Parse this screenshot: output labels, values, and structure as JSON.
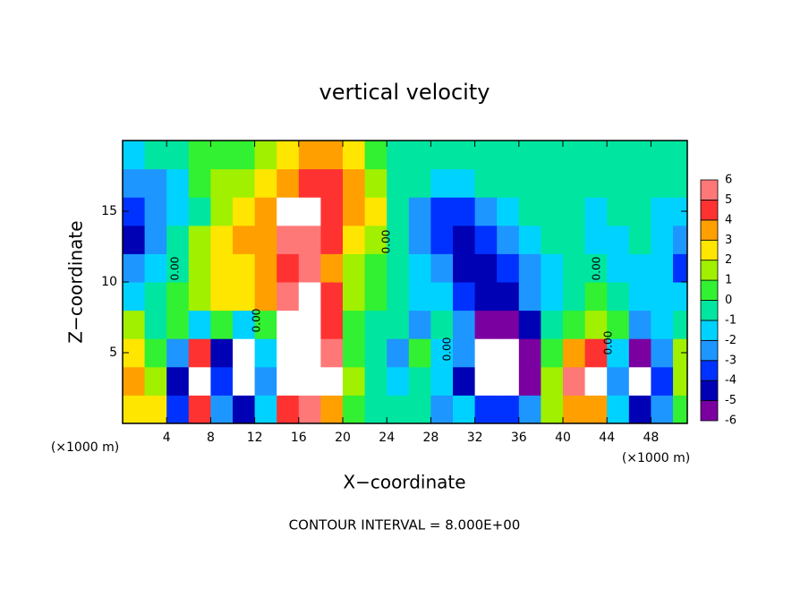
{
  "chart_data": {
    "type": "contour",
    "title": "vertical velocity",
    "x_label": "X−coordinate",
    "y_label": "Z−coordinate",
    "x_unit": "(×1000 m)",
    "y_unit": "(×1000 m)",
    "footer": "CONTOUR INTERVAL = 8.000E+00",
    "contour_label": "0.00",
    "x": [
      1,
      3,
      5,
      7,
      9,
      11,
      13,
      15,
      17,
      19,
      21,
      23,
      25,
      27,
      29,
      31,
      33,
      35,
      37,
      39,
      41,
      43,
      45,
      47,
      49,
      51
    ],
    "y": [
      1,
      3,
      5,
      7,
      9,
      11,
      13,
      15,
      17,
      19
    ],
    "z": [
      [
        3,
        3,
        -3,
        5,
        -2,
        -4,
        -1,
        5,
        6,
        4,
        1,
        0,
        0,
        0,
        -2,
        -1,
        -3,
        -3,
        -2,
        2,
        4,
        4,
        -1,
        -4,
        -2,
        1
      ],
      [
        4,
        2,
        -4,
        7,
        -3,
        -8,
        -2,
        7,
        8,
        7,
        2,
        0,
        -1,
        0,
        -1,
        -4,
        -8,
        -7,
        -5,
        2,
        6,
        7,
        -2,
        -7,
        -3,
        2
      ],
      [
        3,
        1,
        -2,
        5,
        -4,
        -7,
        -1,
        8,
        7,
        6,
        1,
        0,
        -2,
        1,
        -1,
        -2,
        -8,
        -8,
        -6,
        1,
        4,
        5,
        -1,
        -5,
        -2,
        2
      ],
      [
        2,
        0,
        1,
        -1,
        1,
        -1,
        1,
        8,
        8,
        5,
        1,
        0,
        -0.5,
        -2,
        0,
        -2,
        -5,
        -5.5,
        -4,
        0,
        1,
        1.5,
        1,
        -2,
        -1,
        0
      ],
      [
        -1,
        0,
        0.5,
        2,
        2.5,
        3,
        4,
        6,
        7,
        5,
        1.5,
        0.5,
        0,
        -1,
        -1,
        -3,
        -4.5,
        -4,
        -2,
        -1,
        0,
        0.5,
        0,
        -1,
        -1,
        -1
      ],
      [
        -2,
        -1,
        0,
        2,
        3,
        3,
        4,
        5,
        5.5,
        4,
        2,
        1,
        0,
        -1,
        -2,
        -4,
        -4,
        -3,
        -2,
        -1,
        0,
        0,
        -1,
        -1,
        -1,
        -3
      ],
      [
        -4,
        -2,
        0,
        1.5,
        3,
        3.5,
        4,
        6,
        5.5,
        4.5,
        3,
        2,
        0,
        -2,
        -3,
        -4,
        -3,
        -2,
        -1,
        0,
        0,
        -1,
        -1,
        -0.5,
        -1,
        -2
      ],
      [
        -3,
        -2.5,
        -1,
        0,
        2,
        3,
        3.5,
        6.5,
        6.5,
        5,
        4,
        2.5,
        0,
        -2,
        -3,
        -3,
        -2,
        -1,
        -0.5,
        0,
        0,
        -1,
        -0.5,
        0,
        -1,
        -1
      ],
      [
        -2,
        -2,
        -1,
        0.5,
        1.5,
        2,
        3,
        4,
        5,
        5,
        4,
        2,
        0,
        -0.5,
        -1,
        -1,
        -0.5,
        0,
        0,
        0,
        0,
        -0.5,
        0,
        0,
        0,
        -0.5
      ],
      [
        -1,
        -0.5,
        0,
        0.5,
        1,
        1,
        2,
        3,
        4,
        4,
        3,
        1,
        0,
        0,
        -0.5,
        0,
        0,
        0,
        0,
        0,
        0,
        -0.5,
        0,
        0,
        0,
        0
      ]
    ],
    "levels": [
      -6,
      -5,
      -4,
      -3,
      -2,
      -1,
      0,
      1,
      2,
      3,
      4,
      5,
      6
    ],
    "colors": [
      "#7a00a0",
      "#0000b4",
      "#0032ff",
      "#1e96ff",
      "#00d2ff",
      "#00e6a0",
      "#32f032",
      "#a0f000",
      "#ffe600",
      "#ffa000",
      "#ff3232",
      "#ff7878"
    ],
    "out_of_range_color": "#ffffff",
    "xlim": [
      0,
      51.3
    ],
    "ylim": [
      0,
      20
    ],
    "xticks": [
      4,
      8,
      12,
      16,
      20,
      24,
      28,
      32,
      36,
      40,
      44,
      48
    ],
    "yticks": [
      5,
      10,
      15
    ]
  }
}
